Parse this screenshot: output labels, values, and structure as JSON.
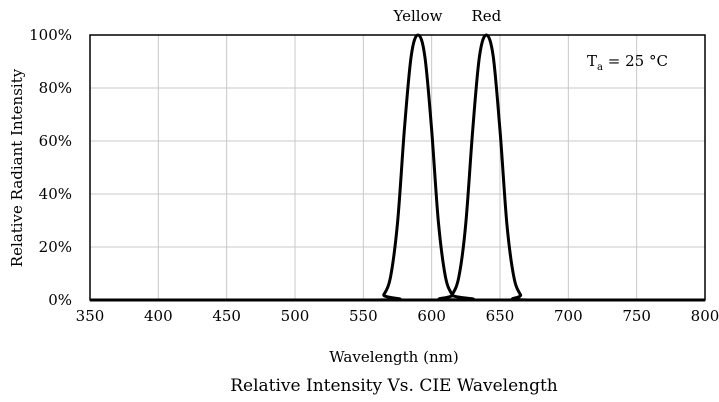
{
  "chart_data": {
    "type": "line",
    "title": "Relative Intensity Vs. CIE Wavelength",
    "xlabel": "Wavelength (nm)",
    "ylabel": "Relative Radiant Intensity",
    "xlim": [
      350,
      800
    ],
    "ylim": [
      0,
      100
    ],
    "x_ticks": [
      "350",
      "400",
      "450",
      "500",
      "550",
      "600",
      "650",
      "700",
      "750",
      "800"
    ],
    "y_ticks": [
      "0%",
      "20%",
      "40%",
      "60%",
      "80%",
      "100%"
    ],
    "grid": true,
    "annotation": {
      "base": "T",
      "sub": "a",
      "rest": " = 25 °C"
    },
    "series": [
      {
        "name": "Yellow",
        "color": "#000000",
        "x": [
          350,
          560,
          565,
          570,
          575,
          580,
          585,
          590,
          595,
          600,
          605,
          610,
          615,
          620,
          800
        ],
        "values": [
          0,
          0,
          2,
          9,
          29,
          64,
          92,
          100,
          92,
          64,
          29,
          9,
          2,
          0,
          0
        ]
      },
      {
        "name": "Red",
        "color": "#000000",
        "x": [
          350,
          610,
          615,
          620,
          625,
          630,
          635,
          640,
          645,
          650,
          655,
          660,
          665,
          670,
          800
        ],
        "values": [
          0,
          0,
          2,
          9,
          29,
          64,
          92,
          100,
          92,
          64,
          29,
          9,
          2,
          0,
          0
        ]
      }
    ]
  }
}
